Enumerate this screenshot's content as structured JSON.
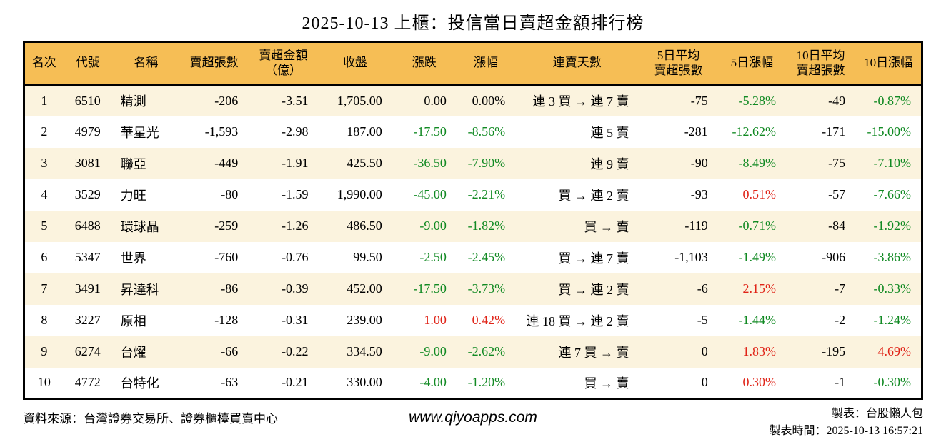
{
  "title": "2025-10-13 上櫃：投信當日賣超金額排行榜",
  "colors": {
    "up": "#e02418",
    "down": "#118a23",
    "flat": "#000000",
    "header_bg": "#f6be55",
    "stripe": "#fbf3de"
  },
  "table": {
    "columns": [
      {
        "key": "rank",
        "label": "名次",
        "label2": ""
      },
      {
        "key": "code",
        "label": "代號",
        "label2": ""
      },
      {
        "key": "name",
        "label": "名稱",
        "label2": ""
      },
      {
        "key": "sell_volume",
        "label": "賣超張數",
        "label2": ""
      },
      {
        "key": "sell_amount",
        "label": "賣超金額",
        "label2": "（億）"
      },
      {
        "key": "close",
        "label": "收盤",
        "label2": ""
      },
      {
        "key": "change",
        "label": "漲跌",
        "label2": ""
      },
      {
        "key": "change_pct",
        "label": "漲幅",
        "label2": ""
      },
      {
        "key": "streak",
        "label": "連賣天數",
        "label2": ""
      },
      {
        "key": "avg5_volume",
        "label": "5日平均",
        "label2": "賣超張數"
      },
      {
        "key": "pct5",
        "label": "5日漲幅",
        "label2": ""
      },
      {
        "key": "avg10_volume",
        "label": "10日平均",
        "label2": "賣超張數"
      },
      {
        "key": "pct10",
        "label": "10日漲幅",
        "label2": ""
      }
    ],
    "rows": [
      {
        "rank": "1",
        "code": "6510",
        "name": "精測",
        "sell_volume": "-206",
        "sell_amount": "-3.51",
        "close": "1,705.00",
        "change": {
          "text": "0.00",
          "color": "flat"
        },
        "change_pct": {
          "text": "0.00%",
          "color": "flat"
        },
        "streak": "連 3 買 → 連 7 賣",
        "avg5_volume": "-75",
        "pct5": {
          "text": "-5.28%",
          "color": "down"
        },
        "avg10_volume": "-49",
        "pct10": {
          "text": "-0.87%",
          "color": "down"
        }
      },
      {
        "rank": "2",
        "code": "4979",
        "name": "華星光",
        "sell_volume": "-1,593",
        "sell_amount": "-2.98",
        "close": "187.00",
        "change": {
          "text": "-17.50",
          "color": "down"
        },
        "change_pct": {
          "text": "-8.56%",
          "color": "down"
        },
        "streak": "連 5 賣",
        "avg5_volume": "-281",
        "pct5": {
          "text": "-12.62%",
          "color": "down"
        },
        "avg10_volume": "-171",
        "pct10": {
          "text": "-15.00%",
          "color": "down"
        }
      },
      {
        "rank": "3",
        "code": "3081",
        "name": "聯亞",
        "sell_volume": "-449",
        "sell_amount": "-1.91",
        "close": "425.50",
        "change": {
          "text": "-36.50",
          "color": "down"
        },
        "change_pct": {
          "text": "-7.90%",
          "color": "down"
        },
        "streak": "連 9 賣",
        "avg5_volume": "-90",
        "pct5": {
          "text": "-8.49%",
          "color": "down"
        },
        "avg10_volume": "-75",
        "pct10": {
          "text": "-7.10%",
          "color": "down"
        }
      },
      {
        "rank": "4",
        "code": "3529",
        "name": "力旺",
        "sell_volume": "-80",
        "sell_amount": "-1.59",
        "close": "1,990.00",
        "change": {
          "text": "-45.00",
          "color": "down"
        },
        "change_pct": {
          "text": "-2.21%",
          "color": "down"
        },
        "streak": "買 → 連 2 賣",
        "avg5_volume": "-93",
        "pct5": {
          "text": "0.51%",
          "color": "up"
        },
        "avg10_volume": "-57",
        "pct10": {
          "text": "-7.66%",
          "color": "down"
        }
      },
      {
        "rank": "5",
        "code": "6488",
        "name": "環球晶",
        "sell_volume": "-259",
        "sell_amount": "-1.26",
        "close": "486.50",
        "change": {
          "text": "-9.00",
          "color": "down"
        },
        "change_pct": {
          "text": "-1.82%",
          "color": "down"
        },
        "streak": "買 → 賣",
        "avg5_volume": "-119",
        "pct5": {
          "text": "-0.71%",
          "color": "down"
        },
        "avg10_volume": "-84",
        "pct10": {
          "text": "-1.92%",
          "color": "down"
        }
      },
      {
        "rank": "6",
        "code": "5347",
        "name": "世界",
        "sell_volume": "-760",
        "sell_amount": "-0.76",
        "close": "99.50",
        "change": {
          "text": "-2.50",
          "color": "down"
        },
        "change_pct": {
          "text": "-2.45%",
          "color": "down"
        },
        "streak": "買 → 連 7 賣",
        "avg5_volume": "-1,103",
        "pct5": {
          "text": "-1.49%",
          "color": "down"
        },
        "avg10_volume": "-906",
        "pct10": {
          "text": "-3.86%",
          "color": "down"
        }
      },
      {
        "rank": "7",
        "code": "3491",
        "name": "昇達科",
        "sell_volume": "-86",
        "sell_amount": "-0.39",
        "close": "452.00",
        "change": {
          "text": "-17.50",
          "color": "down"
        },
        "change_pct": {
          "text": "-3.73%",
          "color": "down"
        },
        "streak": "買 → 連 2 賣",
        "avg5_volume": "-6",
        "pct5": {
          "text": "2.15%",
          "color": "up"
        },
        "avg10_volume": "-7",
        "pct10": {
          "text": "-0.33%",
          "color": "down"
        }
      },
      {
        "rank": "8",
        "code": "3227",
        "name": "原相",
        "sell_volume": "-128",
        "sell_amount": "-0.31",
        "close": "239.00",
        "change": {
          "text": "1.00",
          "color": "up"
        },
        "change_pct": {
          "text": "0.42%",
          "color": "up"
        },
        "streak": "連 18 買 → 連 2 賣",
        "avg5_volume": "-5",
        "pct5": {
          "text": "-1.44%",
          "color": "down"
        },
        "avg10_volume": "-2",
        "pct10": {
          "text": "-1.24%",
          "color": "down"
        }
      },
      {
        "rank": "9",
        "code": "6274",
        "name": "台燿",
        "sell_volume": "-66",
        "sell_amount": "-0.22",
        "close": "334.50",
        "change": {
          "text": "-9.00",
          "color": "down"
        },
        "change_pct": {
          "text": "-2.62%",
          "color": "down"
        },
        "streak": "連 7 買 → 賣",
        "avg5_volume": "0",
        "pct5": {
          "text": "1.83%",
          "color": "up"
        },
        "avg10_volume": "-195",
        "pct10": {
          "text": "4.69%",
          "color": "up"
        }
      },
      {
        "rank": "10",
        "code": "4772",
        "name": "台特化",
        "sell_volume": "-63",
        "sell_amount": "-0.21",
        "close": "330.00",
        "change": {
          "text": "-4.00",
          "color": "down"
        },
        "change_pct": {
          "text": "-1.20%",
          "color": "down"
        },
        "streak": "買 → 賣",
        "avg5_volume": "0",
        "pct5": {
          "text": "0.30%",
          "color": "up"
        },
        "avg10_volume": "-1",
        "pct10": {
          "text": "-0.30%",
          "color": "down"
        }
      }
    ]
  },
  "footer": {
    "source": "資料來源：台灣證券交易所、證券櫃檯買賣中心",
    "website": "www.qiyoapps.com",
    "maker": "製表：台股懶人包",
    "made_time": "製表時間：2025-10-13 16:57:21"
  }
}
